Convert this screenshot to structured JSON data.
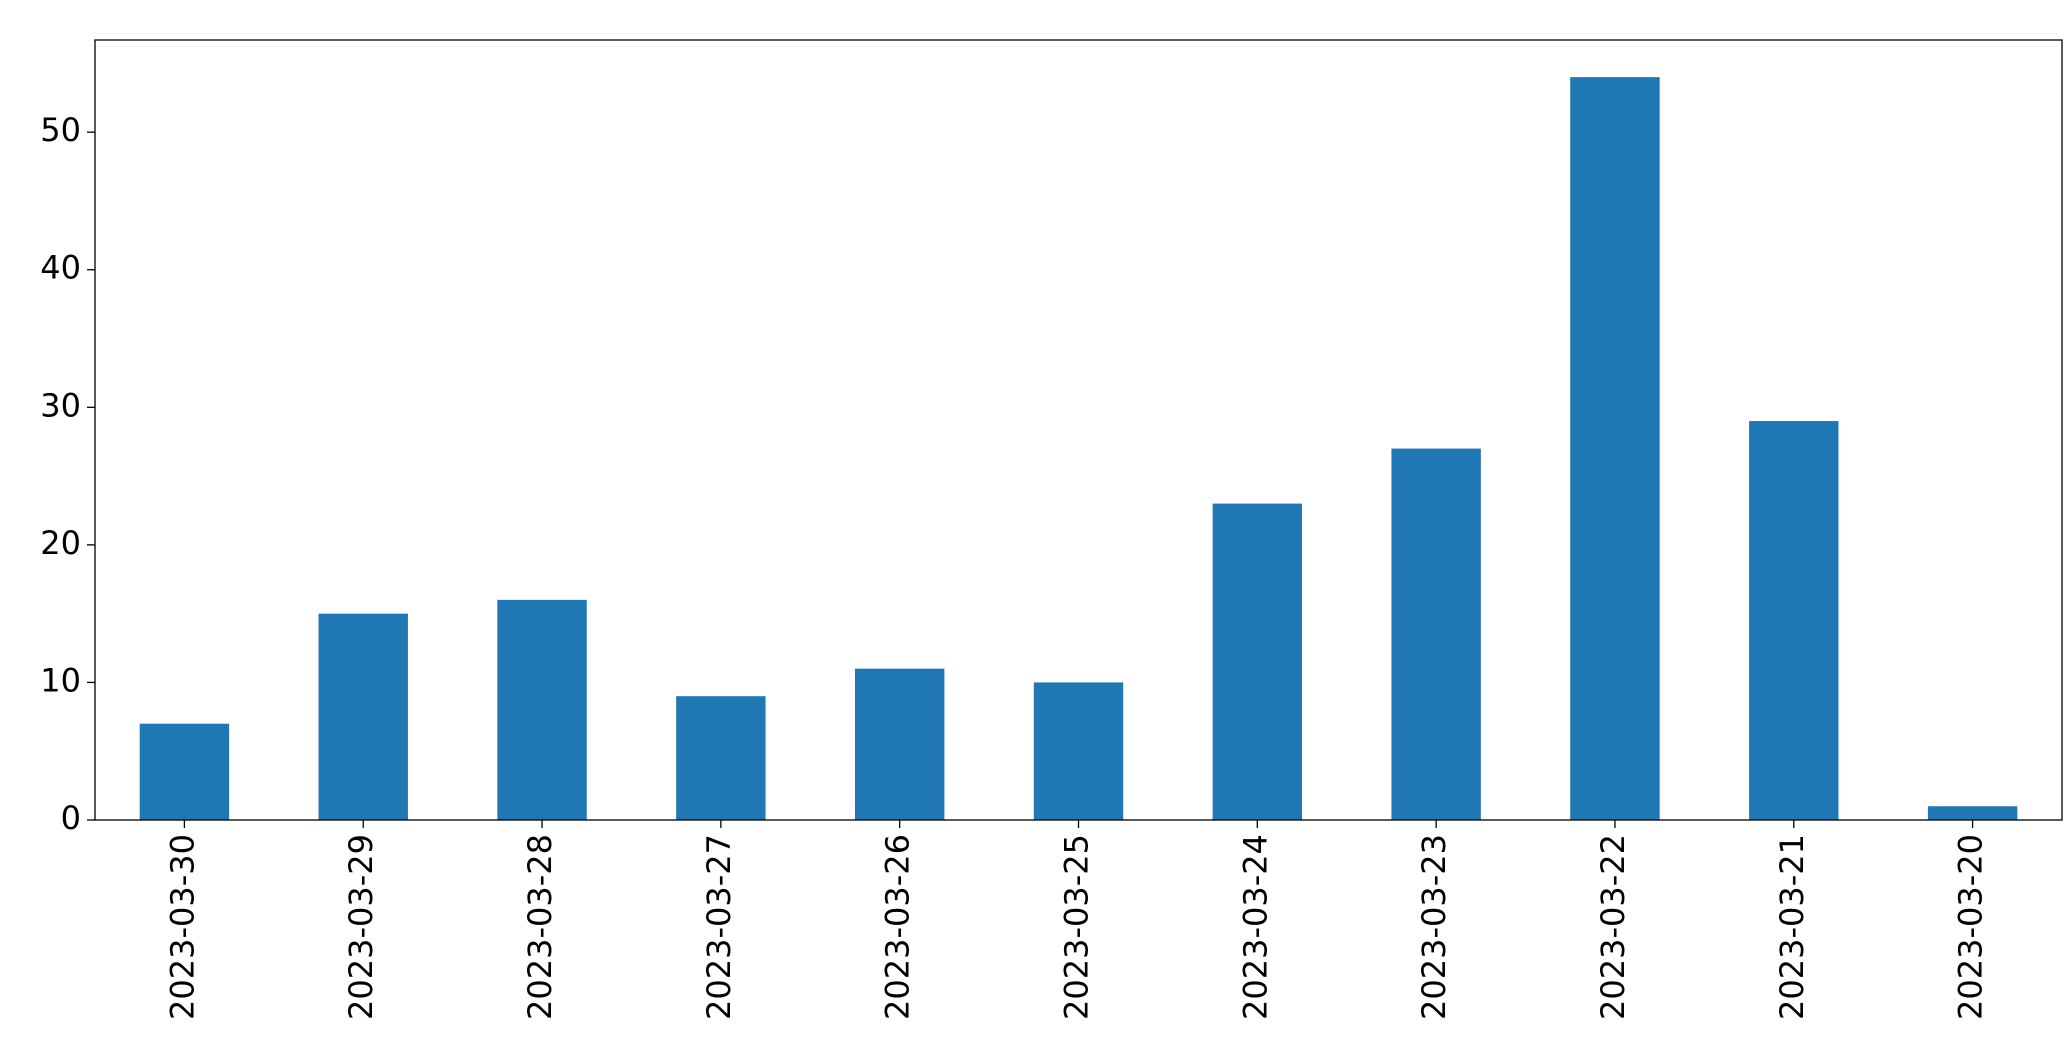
{
  "chart_data": {
    "type": "bar",
    "categories": [
      "2023-03-30",
      "2023-03-29",
      "2023-03-28",
      "2023-03-27",
      "2023-03-26",
      "2023-03-25",
      "2023-03-24",
      "2023-03-23",
      "2023-03-22",
      "2023-03-21",
      "2023-03-20"
    ],
    "values": [
      7,
      15,
      16,
      9,
      11,
      10,
      23,
      27,
      54,
      29,
      1
    ],
    "color": "#1f77b4",
    "ylim": [
      0,
      56.7
    ],
    "yticks": [
      0,
      10,
      20,
      30,
      40,
      50
    ],
    "grid": false
  }
}
